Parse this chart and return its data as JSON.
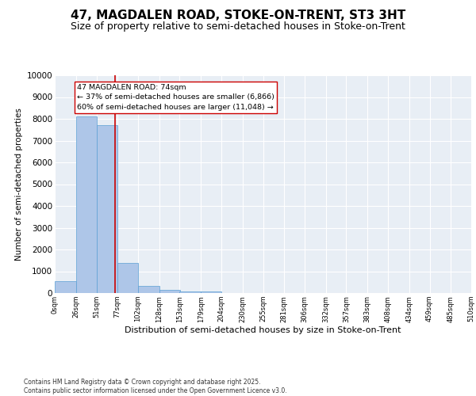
{
  "title": "47, MAGDALEN ROAD, STOKE-ON-TRENT, ST3 3HT",
  "subtitle": "Size of property relative to semi-detached houses in Stoke-on-Trent",
  "xlabel": "Distribution of semi-detached houses by size in Stoke-on-Trent",
  "ylabel": "Number of semi-detached properties",
  "bar_edges": [
    0,
    26,
    51,
    77,
    102,
    128,
    153,
    179,
    204,
    230,
    255,
    281,
    306,
    332,
    357,
    383,
    408,
    434,
    459,
    485,
    510
  ],
  "bar_heights": [
    550,
    8100,
    7700,
    1400,
    320,
    160,
    90,
    55,
    0,
    0,
    0,
    0,
    0,
    0,
    0,
    0,
    0,
    0,
    0,
    0
  ],
  "bar_color": "#aec6e8",
  "bar_edgecolor": "#5a9fd4",
  "property_value": 74,
  "vline_color": "#cc0000",
  "annotation_text": "47 MAGDALEN ROAD: 74sqm\n← 37% of semi-detached houses are smaller (6,866)\n60% of semi-detached houses are larger (11,048) →",
  "annotation_boxcolor": "white",
  "annotation_edgecolor": "#cc0000",
  "ylim": [
    0,
    10000
  ],
  "yticks": [
    0,
    1000,
    2000,
    3000,
    4000,
    5000,
    6000,
    7000,
    8000,
    9000,
    10000
  ],
  "tick_labels": [
    "0sqm",
    "26sqm",
    "51sqm",
    "77sqm",
    "102sqm",
    "128sqm",
    "153sqm",
    "179sqm",
    "204sqm",
    "230sqm",
    "255sqm",
    "281sqm",
    "306sqm",
    "332sqm",
    "357sqm",
    "383sqm",
    "408sqm",
    "434sqm",
    "459sqm",
    "485sqm",
    "510sqm"
  ],
  "background_color": "#e8eef5",
  "grid_color": "white",
  "footer_text": "Contains HM Land Registry data © Crown copyright and database right 2025.\nContains public sector information licensed under the Open Government Licence v3.0.",
  "title_fontsize": 11,
  "subtitle_fontsize": 9,
  "xlabel_fontsize": 8,
  "ylabel_fontsize": 7.5,
  "annotation_fontsize": 6.8
}
